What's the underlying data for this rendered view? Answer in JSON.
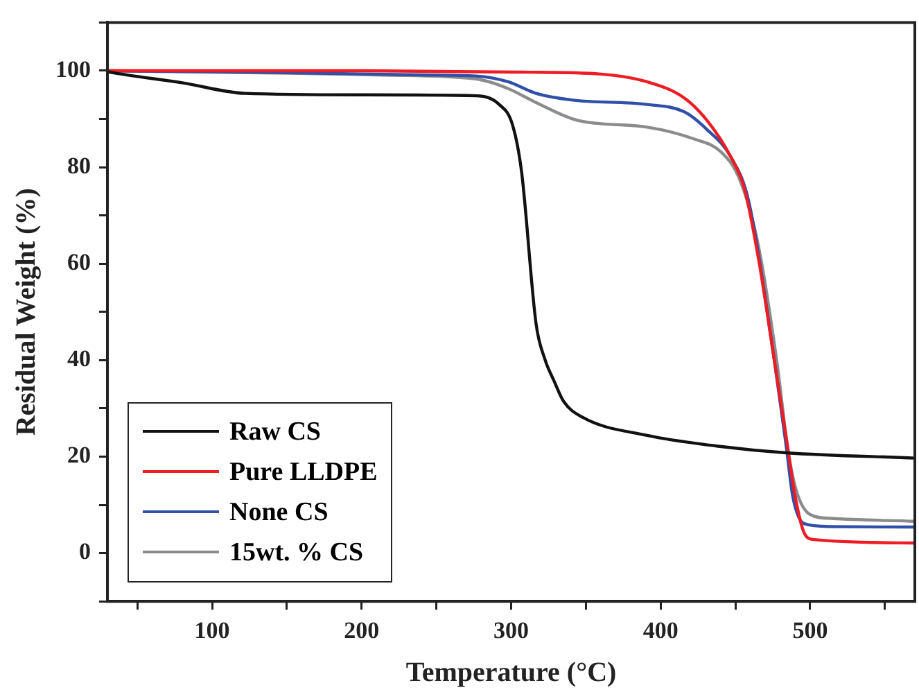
{
  "chart_data": {
    "type": "line",
    "xlabel": "Temperature (°C)",
    "ylabel": "Residual Weight (%)",
    "xlim": [
      30,
      570
    ],
    "ylim": [
      -10,
      110
    ],
    "xticks": [
      {
        "value": 50,
        "label": null
      },
      100,
      {
        "value": 150,
        "label": null
      },
      200,
      {
        "value": 250,
        "label": null
      },
      300,
      {
        "value": 350,
        "label": null
      },
      400,
      {
        "value": 450,
        "label": null
      },
      500,
      {
        "value": 550,
        "label": null
      }
    ],
    "yticks": [
      {
        "value": -10,
        "label": null
      },
      0,
      {
        "value": 10,
        "label": null
      },
      20,
      {
        "value": 30,
        "label": null
      },
      40,
      {
        "value": 50,
        "label": null
      },
      60,
      {
        "value": 70,
        "label": null
      },
      80,
      {
        "value": 90,
        "label": null
      },
      100,
      {
        "value": 110,
        "label": null
      }
    ],
    "grid": false,
    "legend": "bottom left",
    "marker": "none",
    "line_style": "solid",
    "series": [
      {
        "name": "Raw CS",
        "color": "#111111",
        "x": [
          30,
          35,
          80,
          122,
          200,
          277,
          292,
          301,
          307,
          316.7,
          322.8,
          328.7,
          335,
          347.5,
          391,
          437.5,
          484,
          570
        ],
        "values": [
          99.8,
          99.5,
          97.5,
          95.3,
          95,
          94.8,
          93,
          88.7,
          79,
          47.5,
          40,
          35.7,
          31.5,
          28.2,
          24.4,
          22.2,
          20.8,
          19.7
        ]
      },
      {
        "name": "Pure LLDPE",
        "color": "#ee1c24",
        "x": [
          30,
          200,
          307.5,
          360,
          391,
          415.6,
          431,
          446.8,
          456,
          466,
          476,
          484,
          490,
          496,
          502.5,
          570
        ],
        "values": [
          100,
          100,
          99.7,
          99.3,
          97.7,
          94.4,
          89.7,
          82.2,
          75.6,
          60,
          40,
          23.9,
          11.7,
          4.2,
          2.8,
          2.1
        ]
      },
      {
        "name": "None CS",
        "color": "#2f4fa8",
        "x": [
          30,
          150,
          245,
          276.4,
          298,
          316.7,
          341.4,
          391,
          415.6,
          431,
          446.8,
          459,
          476,
          484,
          488.4,
          496,
          514,
          570
        ],
        "values": [
          100,
          99.6,
          99.1,
          98.9,
          97.7,
          95.3,
          93.9,
          93,
          91.5,
          87.8,
          82.2,
          72.8,
          40,
          22.1,
          11.7,
          6.1,
          5.5,
          5.4
        ]
      },
      {
        "name": "15wt. % CS",
        "color": "#8c8c8c",
        "x": [
          30,
          150,
          214.5,
          276.4,
          298,
          316.7,
          344.5,
          391,
          421.8,
          440.6,
          452.8,
          465,
          477.6,
          485.3,
          491,
          500,
          514,
          570
        ],
        "values": [
          100,
          99.5,
          99.1,
          98.3,
          96.3,
          93.4,
          89.7,
          88.3,
          85.9,
          83.1,
          77.5,
          64.3,
          40,
          21.1,
          12.7,
          8,
          7.2,
          6.6
        ]
      }
    ]
  }
}
